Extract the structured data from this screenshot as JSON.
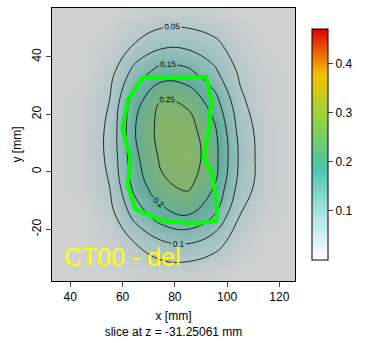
{
  "chart_data": {
    "type": "heatmap",
    "x_label": "x [mm]",
    "subtitle": "slice at z = -31.25061 mm",
    "y_label": "y [mm]",
    "annotation": "CT00 - del",
    "x": [
      35,
      45,
      55,
      65,
      75,
      85,
      95,
      105,
      115,
      125
    ],
    "y": [
      -35,
      -25,
      -15,
      -5,
      5,
      15,
      25,
      35,
      45,
      55
    ],
    "cells": [
      [
        0,
        0,
        0,
        0.01,
        0.02,
        0.02,
        0.01,
        0,
        0,
        0
      ],
      [
        0,
        0,
        0.01,
        0.05,
        0.09,
        0.1,
        0.07,
        0.02,
        0,
        0
      ],
      [
        0,
        0,
        0.03,
        0.12,
        0.18,
        0.2,
        0.15,
        0.05,
        0.01,
        0
      ],
      [
        0,
        0.01,
        0.05,
        0.17,
        0.24,
        0.26,
        0.2,
        0.08,
        0.02,
        0
      ],
      [
        0,
        0.01,
        0.06,
        0.19,
        0.26,
        0.28,
        0.22,
        0.09,
        0.02,
        0
      ],
      [
        0,
        0.01,
        0.06,
        0.2,
        0.27,
        0.27,
        0.21,
        0.08,
        0.02,
        0
      ],
      [
        0,
        0.01,
        0.05,
        0.18,
        0.25,
        0.24,
        0.17,
        0.06,
        0.01,
        0
      ],
      [
        0,
        0,
        0.03,
        0.12,
        0.17,
        0.16,
        0.11,
        0.04,
        0.01,
        0
      ],
      [
        0,
        0,
        0.01,
        0.05,
        0.08,
        0.08,
        0.06,
        0.02,
        0,
        0
      ],
      [
        0,
        0,
        0,
        0.01,
        0.02,
        0.02,
        0.01,
        0,
        0,
        0
      ]
    ],
    "contour_start": 0.05,
    "contour_end": 0.25,
    "contour_step": 0.05,
    "colorbar_range": [
      0,
      0.47
    ],
    "colorbar_ticks": [
      0.1,
      0.2,
      0.3,
      0.4
    ],
    "structure": {
      "color": "#00ff00",
      "x": [
        68,
        92,
        94,
        93,
        91,
        94,
        96,
        96,
        88,
        75,
        65,
        62,
        63,
        60,
        62,
        68
      ],
      "y": [
        33,
        33,
        25,
        15,
        5,
        0,
        -10,
        -17,
        -18,
        -17,
        -13,
        -5,
        5,
        15,
        25,
        33
      ]
    },
    "xlim": [
      33,
      126
    ],
    "ylim": [
      -38,
      57
    ],
    "xticks": [
      40,
      60,
      80,
      100,
      120
    ],
    "yticks": [
      -20,
      0,
      20,
      40
    ],
    "grid": false
  }
}
